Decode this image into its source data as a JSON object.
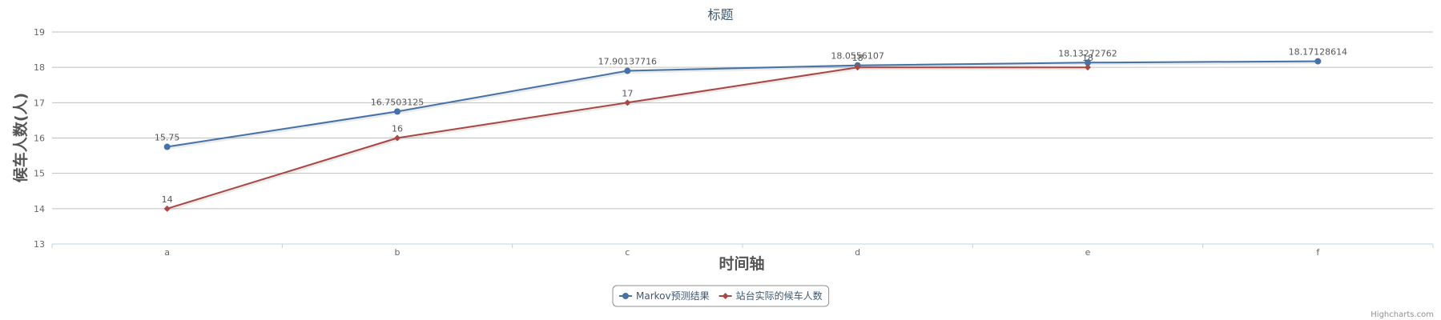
{
  "chart_data": {
    "type": "line",
    "title": "标题",
    "xlabel": "时间轴",
    "ylabel": "候车人数(人)",
    "categories": [
      "a",
      "b",
      "c",
      "d",
      "e",
      "f"
    ],
    "ylim": [
      13,
      19
    ],
    "yticks": [
      "13",
      "14",
      "15",
      "16",
      "17",
      "18",
      "19"
    ],
    "grid": true,
    "legend_position": "bottom-center",
    "series": [
      {
        "name": "Markov预测结果",
        "color": "#4572A7",
        "marker": "circle",
        "values": [
          15.75,
          16.7503125,
          17.90137716,
          18.0556107,
          18.13272762,
          18.17128614
        ],
        "labels": [
          "15.75",
          "16.7503125",
          "17.90137716",
          "18.0556107",
          "18.13272762",
          "18.17128614"
        ]
      },
      {
        "name": "站台实际的候车人数",
        "color": "#AA4643",
        "marker": "diamond",
        "values": [
          14,
          16,
          17,
          18,
          18,
          null
        ],
        "labels": [
          "14",
          "16",
          "17",
          "18",
          "18",
          ""
        ]
      }
    ],
    "credits": "Highcharts.com"
  }
}
